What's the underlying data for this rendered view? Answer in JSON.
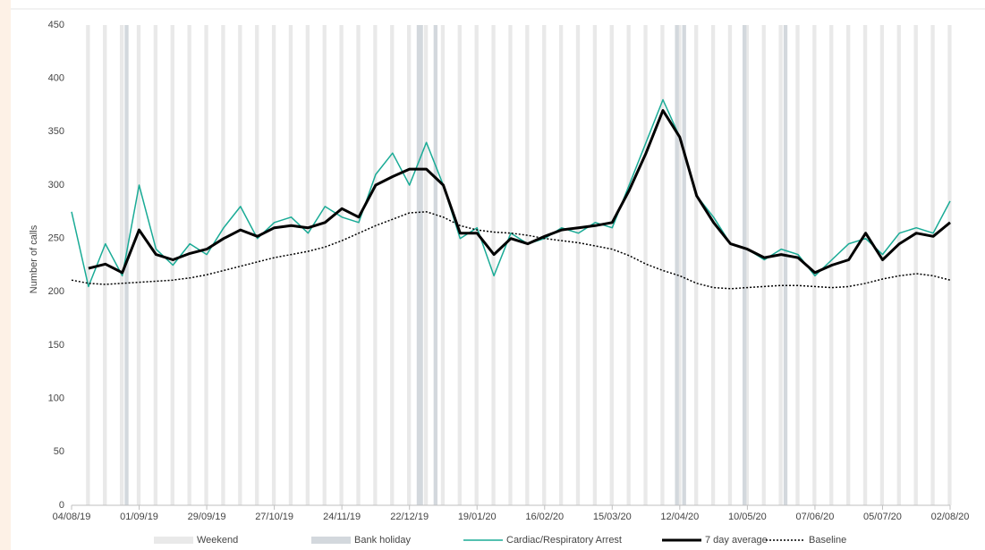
{
  "chart_data": {
    "type": "line",
    "ylabel": "Number of calls",
    "x": [
      "04/08/19",
      "11/08/19",
      "18/08/19",
      "25/08/19",
      "01/09/19",
      "08/09/19",
      "15/09/19",
      "22/09/19",
      "29/09/19",
      "06/10/19",
      "13/10/19",
      "20/10/19",
      "27/10/19",
      "03/11/19",
      "10/11/19",
      "17/11/19",
      "24/11/19",
      "01/12/19",
      "08/12/19",
      "15/12/19",
      "22/12/19",
      "29/12/19",
      "05/01/20",
      "12/01/20",
      "19/01/20",
      "26/01/20",
      "02/02/20",
      "09/02/20",
      "16/02/20",
      "23/02/20",
      "01/03/20",
      "08/03/20",
      "15/03/20",
      "22/03/20",
      "29/03/20",
      "05/04/20",
      "12/04/20",
      "19/04/20",
      "26/04/20",
      "03/05/20",
      "10/05/20",
      "17/05/20",
      "24/05/20",
      "31/05/20",
      "07/06/20",
      "14/06/20",
      "21/06/20",
      "28/06/20",
      "05/07/20",
      "12/07/20",
      "19/07/20",
      "26/07/20",
      "02/08/20"
    ],
    "series": [
      {
        "name": "Cardiac/Respiratory Arrest",
        "color": "#1aab96",
        "width": 1.5,
        "dash": "solid",
        "values": [
          275,
          205,
          245,
          215,
          300,
          240,
          225,
          245,
          235,
          260,
          280,
          250,
          265,
          270,
          255,
          280,
          270,
          265,
          310,
          330,
          300,
          340,
          300,
          250,
          260,
          215,
          255,
          245,
          250,
          260,
          255,
          265,
          260,
          300,
          340,
          380,
          345,
          290,
          270,
          245,
          240,
          230,
          240,
          235,
          215,
          230,
          245,
          250,
          235,
          255,
          260,
          255,
          285
        ]
      },
      {
        "name": "7 day average",
        "color": "#000000",
        "width": 3,
        "dash": "solid",
        "values": [
          null,
          222,
          226,
          218,
          258,
          235,
          230,
          236,
          240,
          250,
          258,
          252,
          260,
          262,
          260,
          265,
          278,
          270,
          300,
          308,
          315,
          315,
          300,
          255,
          255,
          235,
          250,
          245,
          252,
          258,
          260,
          262,
          265,
          295,
          330,
          370,
          345,
          290,
          265,
          245,
          240,
          232,
          235,
          232,
          218,
          225,
          230,
          255,
          230,
          245,
          255,
          252,
          265
        ]
      },
      {
        "name": "Baseline",
        "color": "#000000",
        "width": 1.5,
        "dash": "dotted",
        "values": [
          211,
          208,
          207,
          208,
          209,
          210,
          211,
          213,
          216,
          220,
          224,
          228,
          232,
          235,
          238,
          242,
          248,
          255,
          262,
          268,
          274,
          275,
          270,
          262,
          258,
          256,
          255,
          253,
          250,
          248,
          246,
          243,
          240,
          234,
          226,
          220,
          215,
          208,
          204,
          203,
          204,
          205,
          206,
          206,
          205,
          204,
          205,
          208,
          212,
          215,
          217,
          215,
          211
        ]
      }
    ],
    "bands": [
      {
        "name": "Weekend",
        "color": "#e9e9e9",
        "dates": [
          "10/08/19",
          "17/08/19",
          "24/08/19",
          "31/08/19",
          "07/09/19",
          "14/09/19",
          "21/09/19",
          "28/09/19",
          "05/10/19",
          "12/10/19",
          "19/10/19",
          "26/10/19",
          "02/11/19",
          "09/11/19",
          "16/11/19",
          "23/11/19",
          "30/11/19",
          "07/12/19",
          "14/12/19",
          "21/12/19",
          "28/12/19",
          "04/01/20",
          "11/01/20",
          "18/01/20",
          "25/01/20",
          "01/02/20",
          "08/02/20",
          "15/02/20",
          "22/02/20",
          "29/02/20",
          "07/03/20",
          "14/03/20",
          "21/03/20",
          "28/03/20",
          "04/04/20",
          "11/04/20",
          "18/04/20",
          "25/04/20",
          "02/05/20",
          "09/05/20",
          "16/05/20",
          "23/05/20",
          "30/05/20",
          "06/06/20",
          "13/06/20",
          "20/06/20",
          "27/06/20",
          "04/07/20",
          "11/07/20",
          "18/07/20",
          "25/07/20",
          "01/08/20"
        ]
      },
      {
        "name": "Bank holiday",
        "color": "#d3d8dd",
        "dates": [
          "26/08/19",
          "25/12/19",
          "26/12/19",
          "01/01/20",
          "10/04/20",
          "13/04/20",
          "08/05/20",
          "25/05/20"
        ]
      }
    ],
    "xlim": [
      "04/08/19",
      "02/08/20"
    ],
    "xticks": [
      "04/08/19",
      "01/09/19",
      "29/09/19",
      "27/10/19",
      "24/11/19",
      "22/12/19",
      "19/01/20",
      "16/02/20",
      "15/03/20",
      "12/04/20",
      "10/05/20",
      "07/06/20",
      "05/07/20",
      "02/08/20"
    ],
    "ylim": [
      0,
      450
    ],
    "yticks": [
      0,
      50,
      100,
      150,
      200,
      250,
      300,
      350,
      400,
      450
    ],
    "legend": "bottom"
  }
}
